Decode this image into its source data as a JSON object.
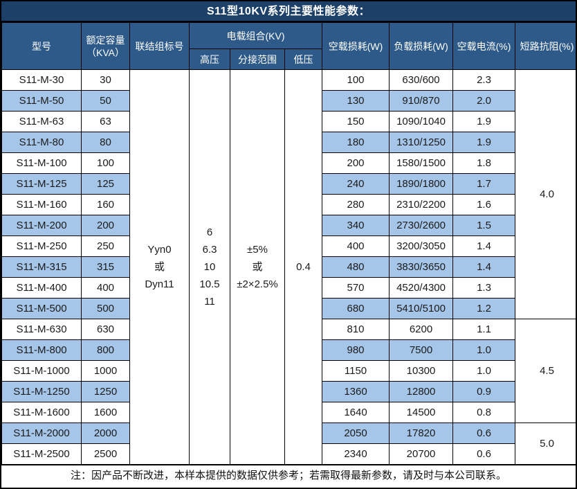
{
  "title": "S11型10KV系列主要性能参数：",
  "headers": {
    "model": "型号",
    "capacity": "额定容量\n（KVA）",
    "connection": "联结组标号",
    "load_combo": "电载组合(KV)",
    "hv": "高压",
    "tap_range": "分接范围",
    "lv": "低压",
    "no_load_loss": "空载损耗(W)",
    "load_loss": "负载损耗(W)",
    "no_load_current": "空载电流(%)",
    "impedance": "短路抗阻(%)"
  },
  "merged": {
    "connection": "Yyn0\n或\nDyn11",
    "hv": "6\n6.3\n10\n10.5\n11",
    "tap": "±5%\n或\n±2×2.5%",
    "lv": "0.4"
  },
  "rows": [
    {
      "model": "S11-M-30",
      "kva": "30",
      "no_load": "100",
      "load": "630/600",
      "current": "2.3"
    },
    {
      "model": "S11-M-50",
      "kva": "50",
      "no_load": "130",
      "load": "910/870",
      "current": "2.0"
    },
    {
      "model": "S11-M-63",
      "kva": "63",
      "no_load": "150",
      "load": "1090/1040",
      "current": "1.9"
    },
    {
      "model": "S11-M-80",
      "kva": "80",
      "no_load": "180",
      "load": "1310/1250",
      "current": "1.9"
    },
    {
      "model": "S11-M-100",
      "kva": "100",
      "no_load": "200",
      "load": "1580/1500",
      "current": "1.8"
    },
    {
      "model": "S11-M-125",
      "kva": "125",
      "no_load": "240",
      "load": "1890/1800",
      "current": "1.7"
    },
    {
      "model": "S11-M-160",
      "kva": "160",
      "no_load": "280",
      "load": "2310/2200",
      "current": "1.6"
    },
    {
      "model": "S11-M-200",
      "kva": "200",
      "no_load": "340",
      "load": "2730/2600",
      "current": "1.5"
    },
    {
      "model": "S11-M-250",
      "kva": "250",
      "no_load": "400",
      "load": "3200/3050",
      "current": "1.4"
    },
    {
      "model": "S11-M-315",
      "kva": "315",
      "no_load": "480",
      "load": "3830/3650",
      "current": "1.4"
    },
    {
      "model": "S11-M-400",
      "kva": "400",
      "no_load": "570",
      "load": "4520/4300",
      "current": "1.3"
    },
    {
      "model": "S11-M-500",
      "kva": "500",
      "no_load": "680",
      "load": "5410/5100",
      "current": "1.2"
    },
    {
      "model": "S11-M-630",
      "kva": "630",
      "no_load": "810",
      "load": "6200",
      "current": "1.1"
    },
    {
      "model": "S11-M-800",
      "kva": "800",
      "no_load": "980",
      "load": "7500",
      "current": "1.0"
    },
    {
      "model": "S11-M-1000",
      "kva": "1000",
      "no_load": "1150",
      "load": "10300",
      "current": "1.0"
    },
    {
      "model": "S11-M-1250",
      "kva": "1250",
      "no_load": "1360",
      "load": "12800",
      "current": "0.9"
    },
    {
      "model": "S11-M-1600",
      "kva": "1600",
      "no_load": "1640",
      "load": "14500",
      "current": "0.8"
    },
    {
      "model": "S11-M-2000",
      "kva": "2000",
      "no_load": "2050",
      "load": "17820",
      "current": "0.6"
    },
    {
      "model": "S11-M-2500",
      "kva": "2500",
      "no_load": "2340",
      "load": "20700",
      "current": "0.6"
    }
  ],
  "impedance_groups": [
    {
      "value": "4.0",
      "span": 12
    },
    {
      "value": "4.5",
      "span": 5
    },
    {
      "value": "5.0",
      "span": 2
    }
  ],
  "note": "注：因产品不断改进，本样本提供的数据仅供参考；若需取得最新参数，请及时与本公司联系。",
  "colors": {
    "title_bg": "#1C4068",
    "header_bg": "#2D5A88",
    "alt_row_bg": "#A6C6E9",
    "border": "#000000",
    "header_text": "#FFFFFF",
    "body_text": "#1A1A1A"
  }
}
